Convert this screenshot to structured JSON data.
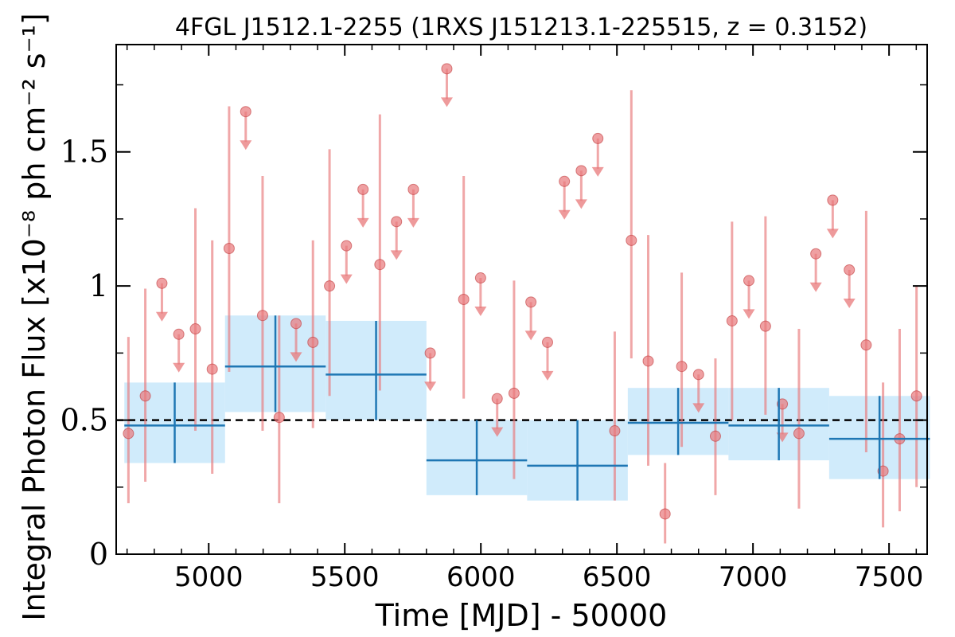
{
  "chart_data": {
    "type": "scatter",
    "title": "4FGL J1512.1-2255 (1RXS J151213.1-225515, z = 0.3152)",
    "xlabel": "Time [MJD] - 50000",
    "ylabel": "Integral Photon Flux [x10⁻⁸ ph cm⁻² s⁻¹]",
    "xlim": [
      4660,
      7640
    ],
    "ylim": [
      0,
      1.9
    ],
    "x_ticks": [
      5000,
      5500,
      6000,
      6500,
      7000,
      7500
    ],
    "x_tick_labels": [
      "5000",
      "5500",
      "6000",
      "6500",
      "7000",
      "7500"
    ],
    "y_ticks": [
      0,
      0.5,
      1,
      1.5
    ],
    "y_tick_labels": [
      "0",
      "0.5",
      "1",
      "1.5"
    ],
    "reference_line": {
      "y": 0.5,
      "style": "dashed",
      "color": "#000000"
    },
    "colors": {
      "detections": "#e8787a",
      "bins": "#1f77b4",
      "band": "#cdeafb"
    },
    "series": [
      {
        "kind": "detections",
        "points": [
          {
            "x": 4705,
            "y": 0.45,
            "ylo": 0.19,
            "yhi": 0.81
          },
          {
            "x": 4767,
            "y": 0.59,
            "ylo": 0.27,
            "yhi": 0.99
          },
          {
            "x": 4951,
            "y": 0.84,
            "ylo": 0.46,
            "yhi": 1.29
          },
          {
            "x": 5013,
            "y": 0.69,
            "ylo": 0.3,
            "yhi": 1.17
          },
          {
            "x": 5075,
            "y": 1.14,
            "ylo": 0.68,
            "yhi": 1.67
          },
          {
            "x": 5198,
            "y": 0.89,
            "ylo": 0.46,
            "yhi": 1.41
          },
          {
            "x": 5259,
            "y": 0.51,
            "ylo": 0.19,
            "yhi": 0.89
          },
          {
            "x": 5383,
            "y": 0.79,
            "ylo": 0.47,
            "yhi": 1.17
          },
          {
            "x": 5444,
            "y": 1.0,
            "ylo": 0.59,
            "yhi": 1.51
          },
          {
            "x": 5629,
            "y": 1.08,
            "ylo": 0.61,
            "yhi": 1.64
          },
          {
            "x": 5937,
            "y": 0.95,
            "ylo": 0.58,
            "yhi": 1.41
          },
          {
            "x": 6122,
            "y": 0.6,
            "ylo": 0.28,
            "yhi": 1.02
          },
          {
            "x": 6492,
            "y": 0.46,
            "ylo": 0.2,
            "yhi": 0.83
          },
          {
            "x": 6553,
            "y": 1.17,
            "ylo": 0.73,
            "yhi": 1.73
          },
          {
            "x": 6615,
            "y": 0.72,
            "ylo": 0.33,
            "yhi": 1.19
          },
          {
            "x": 6677,
            "y": 0.15,
            "ylo": 0.04,
            "yhi": 0.34
          },
          {
            "x": 6738,
            "y": 0.7,
            "ylo": 0.4,
            "yhi": 1.05
          },
          {
            "x": 6862,
            "y": 0.44,
            "ylo": 0.22,
            "yhi": 0.73
          },
          {
            "x": 6923,
            "y": 0.87,
            "ylo": 0.5,
            "yhi": 1.24
          },
          {
            "x": 7046,
            "y": 0.85,
            "ylo": 0.52,
            "yhi": 1.26
          },
          {
            "x": 7169,
            "y": 0.45,
            "ylo": 0.17,
            "yhi": 0.84
          },
          {
            "x": 7416,
            "y": 0.78,
            "ylo": 0.38,
            "yhi": 1.28
          },
          {
            "x": 7478,
            "y": 0.31,
            "ylo": 0.1,
            "yhi": 0.64
          },
          {
            "x": 7539,
            "y": 0.43,
            "ylo": 0.16,
            "yhi": 0.84
          },
          {
            "x": 7601,
            "y": 0.59,
            "ylo": 0.25,
            "yhi": 1.0
          }
        ]
      },
      {
        "kind": "upper_limits",
        "points": [
          {
            "x": 4828,
            "y": 1.01
          },
          {
            "x": 4890,
            "y": 0.82
          },
          {
            "x": 5136,
            "y": 1.65
          },
          {
            "x": 5321,
            "y": 0.86
          },
          {
            "x": 5506,
            "y": 1.15
          },
          {
            "x": 5567,
            "y": 1.36
          },
          {
            "x": 5690,
            "y": 1.24
          },
          {
            "x": 5752,
            "y": 1.36
          },
          {
            "x": 5814,
            "y": 0.75
          },
          {
            "x": 5875,
            "y": 1.81
          },
          {
            "x": 5999,
            "y": 1.03
          },
          {
            "x": 6060,
            "y": 0.58
          },
          {
            "x": 6184,
            "y": 0.94
          },
          {
            "x": 6245,
            "y": 0.79
          },
          {
            "x": 6307,
            "y": 1.39
          },
          {
            "x": 6369,
            "y": 1.43
          },
          {
            "x": 6430,
            "y": 1.55
          },
          {
            "x": 6800,
            "y": 0.67
          },
          {
            "x": 6985,
            "y": 1.02
          },
          {
            "x": 7108,
            "y": 0.56
          },
          {
            "x": 7231,
            "y": 1.12
          },
          {
            "x": 7293,
            "y": 1.32
          },
          {
            "x": 7354,
            "y": 1.06
          }
        ]
      },
      {
        "kind": "bins",
        "bins": [
          {
            "x0": 4690,
            "x1": 5060,
            "xc": 4875,
            "y": 0.48,
            "ylo": 0.34,
            "yhi": 0.64
          },
          {
            "x0": 5060,
            "x1": 5430,
            "xc": 5245,
            "y": 0.7,
            "ylo": 0.53,
            "yhi": 0.89
          },
          {
            "x0": 5430,
            "x1": 5800,
            "xc": 5615,
            "y": 0.67,
            "ylo": 0.5,
            "yhi": 0.87
          },
          {
            "x0": 5800,
            "x1": 6170,
            "xc": 5985,
            "y": 0.35,
            "ylo": 0.22,
            "yhi": 0.5
          },
          {
            "x0": 6170,
            "x1": 6540,
            "xc": 6355,
            "y": 0.33,
            "ylo": 0.2,
            "yhi": 0.5
          },
          {
            "x0": 6540,
            "x1": 6910,
            "xc": 6725,
            "y": 0.49,
            "ylo": 0.37,
            "yhi": 0.62
          },
          {
            "x0": 6910,
            "x1": 7280,
            "xc": 7095,
            "y": 0.48,
            "ylo": 0.35,
            "yhi": 0.62
          },
          {
            "x0": 7280,
            "x1": 7650,
            "xc": 7465,
            "y": 0.43,
            "ylo": 0.28,
            "yhi": 0.59
          }
        ]
      }
    ]
  }
}
